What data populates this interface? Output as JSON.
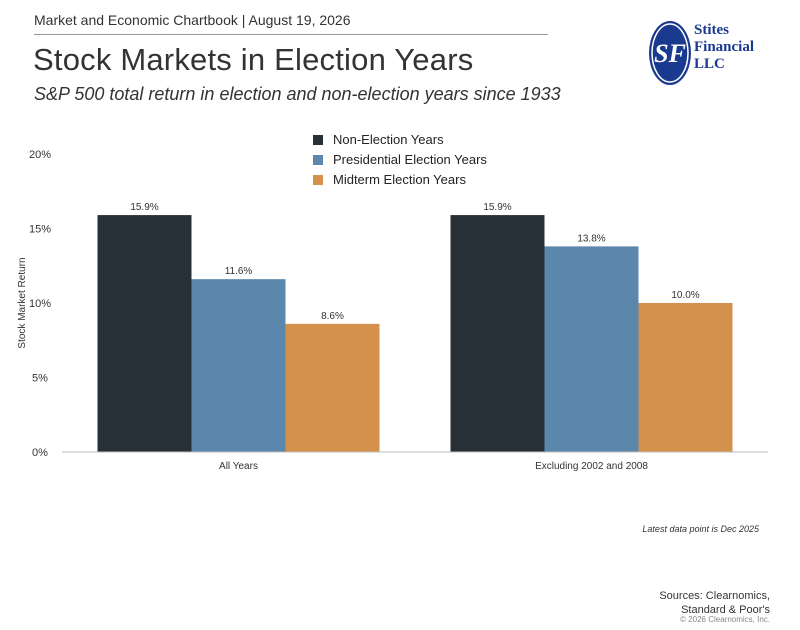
{
  "header": {
    "chartbook": "Market and Economic Chartbook | August 19, 2026",
    "title": "Stock Markets in Election Years",
    "subtitle": "S&P 500 total return in election and non-election years since 1933"
  },
  "logo": {
    "monogram": "SF",
    "line1": "Stites",
    "line2": "Financial",
    "line3": "LLC",
    "color": "#1a3a8f"
  },
  "chart_data": {
    "type": "bar",
    "categories": [
      "All Years",
      "Excluding 2002 and 2008"
    ],
    "series": [
      {
        "name": "Non-Election Years",
        "values": [
          15.9,
          15.9
        ],
        "labels": [
          "15.9%",
          "15.9%"
        ],
        "color": "#283037"
      },
      {
        "name": "Presidential Election Years",
        "values": [
          11.6,
          13.8
        ],
        "labels": [
          "11.6%",
          "13.8%"
        ],
        "color": "#5b87ad"
      },
      {
        "name": "Midterm Election Years",
        "values": [
          8.6,
          10.0
        ],
        "labels": [
          "8.6%",
          "10.0%"
        ],
        "color": "#d4914b"
      }
    ],
    "ylabel": "Stock Market Return",
    "ylim": [
      0,
      20
    ],
    "yticks": [
      0,
      5,
      10,
      15,
      20
    ],
    "ytick_labels": [
      "0%",
      "5%",
      "10%",
      "15%",
      "20%"
    ],
    "grid": false,
    "legend_position": "top-center"
  },
  "footer": {
    "note": "Latest data point is Dec 2025",
    "sources_line1": "Sources: Clearnomics,",
    "sources_line2": "Standard & Poor's",
    "copyright": "© 2026 Clearnomics, Inc."
  }
}
